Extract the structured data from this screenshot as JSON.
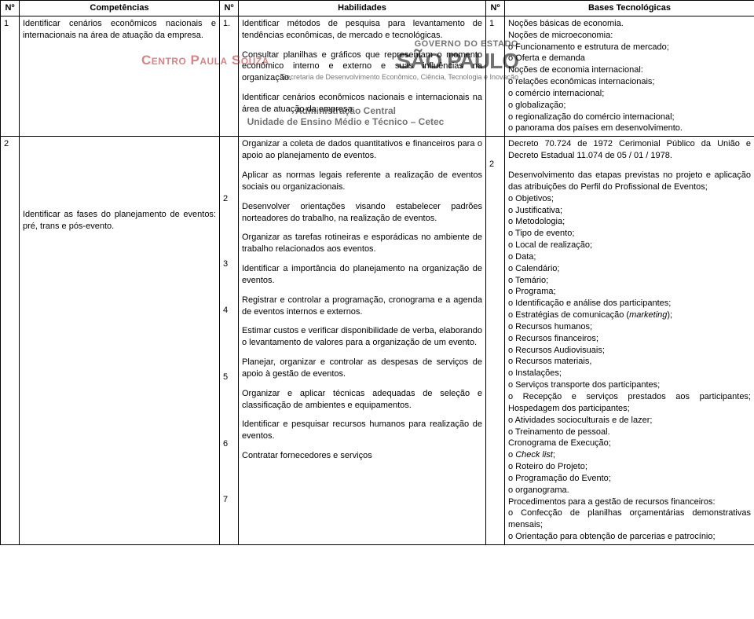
{
  "headers": {
    "n1": "Nº",
    "comp": "Competências",
    "n2": "Nº",
    "hab": "Habilidades",
    "n3": "Nº",
    "base": "Bases Tecnológicas"
  },
  "row1": {
    "n1": "1",
    "comp": "Identificar cenários econômicos nacionais e internacionais na área de atuação da empresa.",
    "hab_n": "1.",
    "hab_p1": "Identificar métodos de pesquisa para levantamento de tendências econômicas, de mercado e tecnológicas.",
    "hab_p2": "Consultar planilhas e gráficos que representam o momento econômico interno e externo e suas influências na organização.",
    "hab_p3": "Identificar cenários econômicos nacionais e internacionais na área de atuação da empresa",
    "base_n": "1",
    "base_l1": "Noções básicas de economia.",
    "base_l2": "Noções de microeconomia:",
    "base_l3": "o Funcionamento e estrutura de mercado;",
    "base_l4": "o Oferta e demanda",
    "base_l5": "Noções de economia internacional:",
    "base_l6": "o relações econômicas internacionais;",
    "base_l7": "o comércio internacional;",
    "base_l8": "o globalização;",
    "base_l9": "o regionalização do comércio internacional;",
    "base_l10": "o panorama dos países em desenvolvimento."
  },
  "row2": {
    "n1": "2",
    "comp": "Identificar as fases do planejamento de eventos: pré, trans e pós-evento.",
    "hab_nums": [
      "2",
      "3",
      "4",
      "5",
      "6",
      "7"
    ],
    "hab_b1": "Organizar a coleta de dados quantitativos e financeiros para o apoio ao planejamento de eventos.",
    "hab_b2": "Aplicar as normas legais referente a realização de eventos sociais ou organizacionais.",
    "hab_b3": "Desenvolver orientações visando estabelecer padrões norteadores do trabalho, na realização de eventos.",
    "hab_b4": "Organizar as tarefas rotineiras e esporádicas no ambiente de trabalho relacionados aos eventos.",
    "hab_b5": "Identificar a importância do planejamento na organização de eventos.",
    "hab_b6": "Registrar e controlar a programação, cronograma e a agenda de eventos internos e externos.",
    "hab_b7": "Estimar custos e verificar disponibilidade de verba, elaborando o levantamento de valores para a organização de um evento.",
    "hab_b8": "Planejar, organizar e controlar as despesas de serviços de apoio à gestão de eventos.",
    "hab_b9": "Organizar e aplicar técnicas adequadas de seleção e classificação de ambientes e equipamentos.",
    "hab_b10": "Identificar e pesquisar recursos humanos para realização de eventos.",
    "hab_b11": "Contratar fornecedores e serviços",
    "base_n": "2",
    "base_b1": "Decreto 70.724 de 1972 Cerimonial Público da União e Decreto Estadual 11.074 de 05 / 01 / 1978.",
    "base_b2": "Desenvolvimento das etapas previstas no projeto e aplicação das atribuições do Perfil do Profissional de Eventos;",
    "base_l": [
      "o Objetivos;",
      "o Justificativa;",
      "o Metodologia;",
      "o Tipo de evento;",
      "o Local de realização;",
      "o Data;",
      "o Calendário;",
      "o Temário;",
      "o Programa;",
      "o Identificação e análise dos participantes;",
      "o Estratégias de comunicação (marketing);",
      "o Recursos humanos;",
      "o Recursos financeiros;",
      "o Recursos Audiovisuais;",
      "o Recursos materiais,",
      "o Instalações;",
      "o Serviços transporte dos participantes;",
      "o Recepção e serviços prestados aos participantes; Hospedagem dos participantes;",
      "o Atividades socioculturais e de lazer;",
      "o Treinamento de pessoal.",
      "Cronograma de Execução;",
      "o Check list;",
      "o Roteiro do Projeto;",
      "o Programação do Evento;",
      "o organograma.",
      "Procedimentos para a gestão de recursos financeiros:",
      "o Confecção de planilhas orçamentárias demonstrativas mensais;",
      "o Orientação para obtenção de parcerias e patrocínio;"
    ]
  },
  "watermark": {
    "gov": "GOVERNO DO ESTADO",
    "sp": "SÃO PAULO",
    "sec": "Secretaria de Desenvolvimento Econômico, Ciência, Tecnologia e Inovação",
    "cps1": "Centro ",
    "cps2": "Paula Souza",
    "adm": "Administração Central",
    "unit": "Unidade de Ensino Médio e Técnico – Cetec"
  }
}
